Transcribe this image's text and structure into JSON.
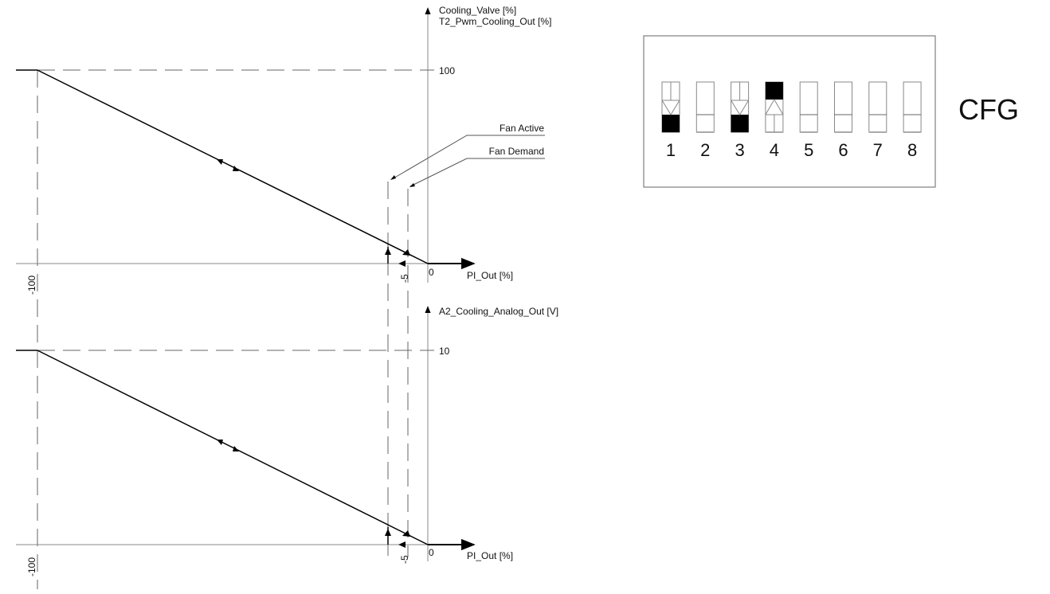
{
  "plot_top": {
    "y_label_1": "Cooling_Valve [%]",
    "y_label_2": "T2_Pwm_Cooling_Out [%]",
    "y_max_label": "100",
    "x_label": "PI_Out [%]",
    "x_zero_label": "0",
    "x_m5_label": "-5",
    "x_m100_label": "-100",
    "fan_active_label": "Fan Active",
    "fan_demand_label": "Fan Demand"
  },
  "plot_bottom": {
    "y_label": "A2_Cooling_Analog_Out [V]",
    "y_max_label": "10",
    "x_label": "PI_Out [%]",
    "x_zero_label": "0",
    "x_m5_label": "-5",
    "x_m100_label": "-100"
  },
  "dip_switch": {
    "label": "CFG",
    "switches": [
      {
        "number": "1",
        "state": "on",
        "highlight": "down"
      },
      {
        "number": "2",
        "state": "off",
        "highlight": "none"
      },
      {
        "number": "3",
        "state": "on",
        "highlight": "down"
      },
      {
        "number": "4",
        "state": "off",
        "highlight": "up"
      },
      {
        "number": "5",
        "state": "off",
        "highlight": "none"
      },
      {
        "number": "6",
        "state": "off",
        "highlight": "none"
      },
      {
        "number": "7",
        "state": "off",
        "highlight": "none"
      },
      {
        "number": "8",
        "state": "off",
        "highlight": "none"
      }
    ]
  }
}
